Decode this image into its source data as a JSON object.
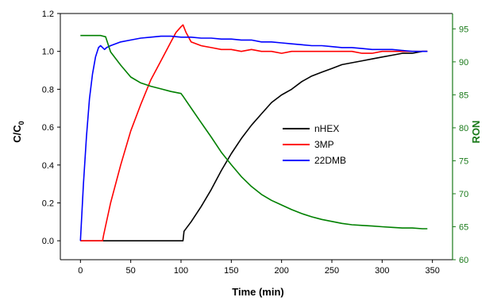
{
  "chart_data": {
    "type": "line",
    "xlabel": "Time (min)",
    "ylabel_main": "C/C",
    "ylabel_sub": "0",
    "y2label": "RON",
    "xlim": [
      -20,
      370
    ],
    "ylim": [
      -0.1,
      1.2
    ],
    "y2lim": [
      60,
      97.33
    ],
    "x_ticks": [
      0,
      50,
      100,
      150,
      200,
      250,
      300,
      350
    ],
    "y_ticks": [
      0.0,
      0.2,
      0.4,
      0.6,
      0.8,
      1.0,
      1.2
    ],
    "y2_ticks": [
      60,
      65,
      70,
      75,
      80,
      85,
      90,
      95
    ],
    "legend_position": "center-right",
    "colors": {
      "nHEX": "#000000",
      "3MP": "#ff0000",
      "22DMB": "#0000ff",
      "RON": "#008000",
      "right_axis": "#1a7a1a"
    },
    "series": [
      {
        "name": "nHEX",
        "axis": "left",
        "x": [
          0,
          102,
          103,
          110,
          120,
          130,
          140,
          150,
          160,
          170,
          180,
          190,
          200,
          210,
          220,
          230,
          240,
          250,
          260,
          270,
          280,
          290,
          300,
          310,
          320,
          330,
          340,
          345
        ],
        "y": [
          0.0,
          0.0,
          0.05,
          0.1,
          0.18,
          0.27,
          0.37,
          0.46,
          0.54,
          0.61,
          0.67,
          0.73,
          0.77,
          0.8,
          0.84,
          0.87,
          0.89,
          0.91,
          0.93,
          0.94,
          0.95,
          0.96,
          0.97,
          0.98,
          0.99,
          0.99,
          1.0,
          1.0
        ]
      },
      {
        "name": "3MP",
        "axis": "left",
        "x": [
          0,
          22,
          23,
          30,
          40,
          50,
          60,
          70,
          80,
          90,
          95,
          100,
          102,
          105,
          110,
          120,
          130,
          140,
          150,
          160,
          170,
          180,
          190,
          200,
          210,
          220,
          230,
          240,
          250,
          260,
          270,
          280,
          290,
          300,
          310,
          320,
          330,
          340,
          345
        ],
        "y": [
          0.0,
          0.0,
          0.03,
          0.2,
          0.4,
          0.58,
          0.72,
          0.85,
          0.95,
          1.05,
          1.1,
          1.13,
          1.14,
          1.1,
          1.05,
          1.03,
          1.02,
          1.01,
          1.01,
          1.0,
          1.01,
          1.0,
          1.0,
          0.99,
          1.0,
          1.0,
          1.0,
          1.0,
          1.0,
          1.0,
          1.0,
          0.99,
          0.99,
          1.0,
          1.0,
          1.0,
          1.0,
          1.0,
          1.0
        ]
      },
      {
        "name": "22DMB",
        "axis": "left",
        "x": [
          0,
          3,
          6,
          9,
          12,
          15,
          18,
          20,
          22,
          24,
          26,
          30,
          40,
          50,
          60,
          70,
          80,
          90,
          100,
          110,
          120,
          130,
          140,
          150,
          160,
          170,
          180,
          190,
          200,
          210,
          220,
          230,
          240,
          250,
          260,
          270,
          280,
          290,
          300,
          310,
          320,
          330,
          340,
          345
        ],
        "y": [
          0.0,
          0.3,
          0.55,
          0.75,
          0.88,
          0.97,
          1.02,
          1.03,
          1.02,
          1.01,
          1.02,
          1.03,
          1.05,
          1.06,
          1.07,
          1.075,
          1.08,
          1.08,
          1.075,
          1.075,
          1.07,
          1.07,
          1.065,
          1.065,
          1.06,
          1.06,
          1.05,
          1.05,
          1.045,
          1.04,
          1.035,
          1.03,
          1.03,
          1.025,
          1.02,
          1.02,
          1.015,
          1.01,
          1.01,
          1.01,
          1.005,
          1.0,
          1.0,
          1.0
        ]
      },
      {
        "name": "RON",
        "axis": "right",
        "x": [
          0,
          20,
          25,
          30,
          40,
          50,
          60,
          70,
          80,
          90,
          100,
          102,
          110,
          120,
          130,
          140,
          150,
          160,
          170,
          180,
          190,
          200,
          210,
          220,
          230,
          240,
          250,
          260,
          270,
          280,
          290,
          300,
          310,
          320,
          330,
          340,
          345
        ],
        "y": [
          94.0,
          94.0,
          93.8,
          91.5,
          89.5,
          87.7,
          86.8,
          86.3,
          85.9,
          85.5,
          85.2,
          84.8,
          83.0,
          80.8,
          78.6,
          76.3,
          74.4,
          72.6,
          71.1,
          69.9,
          69.0,
          68.3,
          67.6,
          67.0,
          66.5,
          66.1,
          65.8,
          65.5,
          65.3,
          65.2,
          65.1,
          65.0,
          64.9,
          64.8,
          64.8,
          64.7,
          64.7
        ]
      }
    ]
  }
}
